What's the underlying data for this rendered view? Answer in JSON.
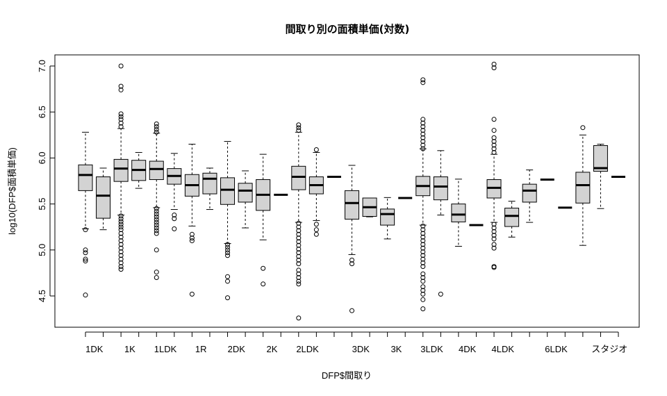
{
  "chart_data": {
    "type": "boxplot",
    "title": "間取り別の面積単価(対数)",
    "xlabel": "DFP$間取り",
    "ylabel": "log10(DFP$面積単価)",
    "ylim": [
      4.15,
      7.12
    ],
    "yticks": [
      4.5,
      5.0,
      5.5,
      6.0,
      6.5,
      7.0
    ],
    "xtick_labels": [
      "1DK",
      "1K",
      "1LDK",
      "1R",
      "2DK",
      "2K",
      "2LDK",
      "3DK",
      "3K",
      "3LDK",
      "4DK",
      "4LDK",
      "6LDK",
      "スタジオ"
    ],
    "xtick_label_groups": [
      1.5,
      3.5,
      5.5,
      7.5,
      9.5,
      11.5,
      13.5,
      16.5,
      18.5,
      20.5,
      22.5,
      24.5,
      27.5,
      30.5
    ],
    "n_groups": 31,
    "boxes": [
      {
        "pos": 1,
        "q1": 5.645,
        "med": 5.815,
        "q3": 5.925,
        "lo": 5.23,
        "hi": 6.28,
        "outliers": [
          5.22,
          5.0,
          4.97,
          4.9,
          4.88,
          4.51
        ]
      },
      {
        "pos": 2,
        "q1": 5.345,
        "med": 5.59,
        "q3": 5.795,
        "lo": 5.22,
        "hi": 5.89,
        "outliers": []
      },
      {
        "pos": 3,
        "q1": 5.745,
        "med": 5.885,
        "q3": 5.985,
        "lo": 5.38,
        "hi": 6.32,
        "outliers": [
          7.0,
          6.78,
          6.74,
          6.48,
          6.45,
          6.42,
          6.38,
          6.34,
          5.37,
          5.34,
          5.31,
          5.28,
          5.25,
          5.22,
          5.18,
          5.14,
          5.1,
          5.06,
          5.02,
          4.98,
          4.94,
          4.9,
          4.86,
          4.82,
          4.79
        ]
      },
      {
        "pos": 4,
        "q1": 5.755,
        "med": 5.87,
        "q3": 5.975,
        "lo": 5.67,
        "hi": 6.06,
        "outliers": []
      },
      {
        "pos": 5,
        "q1": 5.765,
        "med": 5.88,
        "q3": 5.965,
        "lo": 5.46,
        "hi": 6.27,
        "outliers": [
          6.37,
          6.34,
          6.31,
          6.28,
          5.45,
          5.42,
          5.39,
          5.36,
          5.33,
          5.3,
          5.27,
          5.24,
          5.21,
          5.18,
          5.0,
          4.76,
          4.7
        ]
      },
      {
        "pos": 6,
        "q1": 5.715,
        "med": 5.805,
        "q3": 5.885,
        "lo": 5.44,
        "hi": 6.05,
        "outliers": [
          5.38,
          5.34,
          5.23
        ]
      },
      {
        "pos": 7,
        "q1": 5.585,
        "med": 5.705,
        "q3": 5.82,
        "lo": 5.26,
        "hi": 6.15,
        "outliers": [
          5.17,
          5.13,
          5.1,
          4.52
        ]
      },
      {
        "pos": 8,
        "q1": 5.61,
        "med": 5.775,
        "q3": 5.835,
        "lo": 5.44,
        "hi": 5.89,
        "outliers": []
      },
      {
        "pos": 9,
        "q1": 5.495,
        "med": 5.655,
        "q3": 5.785,
        "lo": 5.07,
        "hi": 6.18,
        "outliers": [
          5.06,
          5.03,
          5.0,
          4.97,
          4.94,
          4.71,
          4.66,
          4.48
        ]
      },
      {
        "pos": 10,
        "q1": 5.52,
        "med": 5.645,
        "q3": 5.725,
        "lo": 5.24,
        "hi": 5.86,
        "outliers": []
      },
      {
        "pos": 11,
        "q1": 5.43,
        "med": 5.6,
        "q3": 5.765,
        "lo": 5.11,
        "hi": 6.04,
        "outliers": [
          4.8,
          4.63
        ]
      },
      {
        "pos": 12,
        "q1": 5.6,
        "med": 5.6,
        "q3": 5.6,
        "lo": 5.6,
        "hi": 5.6,
        "outliers": []
      },
      {
        "pos": 13,
        "q1": 5.655,
        "med": 5.795,
        "q3": 5.91,
        "lo": 5.3,
        "hi": 6.28,
        "outliers": [
          6.36,
          6.33,
          6.3,
          5.29,
          5.25,
          5.21,
          5.17,
          5.13,
          5.09,
          5.05,
          5.01,
          4.97,
          4.93,
          4.89,
          4.85,
          4.78,
          4.74,
          4.7,
          4.66,
          4.63,
          4.26
        ]
      },
      {
        "pos": 14,
        "q1": 5.61,
        "med": 5.705,
        "q3": 5.795,
        "lo": 5.32,
        "hi": 6.06,
        "outliers": [
          6.09,
          5.28,
          5.22,
          5.17
        ]
      },
      {
        "pos": 15,
        "q1": 5.795,
        "med": 5.795,
        "q3": 5.795,
        "lo": 5.795,
        "hi": 5.795,
        "outliers": []
      },
      {
        "pos": 16,
        "q1": 5.335,
        "med": 5.51,
        "q3": 5.645,
        "lo": 4.95,
        "hi": 5.92,
        "outliers": [
          4.89,
          4.85,
          4.34
        ]
      },
      {
        "pos": 17,
        "q1": 5.365,
        "med": 5.465,
        "q3": 5.565,
        "lo": 5.36,
        "hi": 5.565,
        "outliers": []
      },
      {
        "pos": 18,
        "q1": 5.27,
        "med": 5.39,
        "q3": 5.445,
        "lo": 5.12,
        "hi": 5.57,
        "outliers": []
      },
      {
        "pos": 19,
        "q1": 5.565,
        "med": 5.565,
        "q3": 5.565,
        "lo": 5.565,
        "hi": 5.565,
        "outliers": []
      },
      {
        "pos": 20,
        "q1": 5.59,
        "med": 5.695,
        "q3": 5.8,
        "lo": 5.27,
        "hi": 6.1,
        "outliers": [
          6.85,
          6.82,
          6.42,
          6.38,
          6.34,
          6.3,
          6.26,
          6.22,
          6.18,
          6.14,
          6.1,
          5.26,
          5.22,
          5.18,
          5.14,
          5.1,
          5.06,
          5.02,
          4.98,
          4.94,
          4.9,
          4.86,
          4.82,
          4.74,
          4.7,
          4.66,
          4.6,
          4.56,
          4.52,
          4.46,
          4.36
        ]
      },
      {
        "pos": 21,
        "q1": 5.545,
        "med": 5.69,
        "q3": 5.795,
        "lo": 5.38,
        "hi": 6.08,
        "outliers": [
          4.52
        ]
      },
      {
        "pos": 22,
        "q1": 5.305,
        "med": 5.385,
        "q3": 5.5,
        "lo": 5.04,
        "hi": 5.77,
        "outliers": []
      },
      {
        "pos": 23,
        "q1": 5.27,
        "med": 5.27,
        "q3": 5.27,
        "lo": 5.27,
        "hi": 5.27,
        "outliers": []
      },
      {
        "pos": 24,
        "q1": 5.565,
        "med": 5.675,
        "q3": 5.765,
        "lo": 5.3,
        "hi": 6.04,
        "outliers": [
          7.02,
          6.98,
          6.42,
          6.3,
          6.22,
          6.18,
          6.14,
          6.1,
          6.06,
          5.28,
          5.24,
          5.2,
          5.16,
          5.12,
          5.06,
          5.02,
          4.82,
          4.81
        ]
      },
      {
        "pos": 25,
        "q1": 5.255,
        "med": 5.37,
        "q3": 5.455,
        "lo": 5.14,
        "hi": 5.53,
        "outliers": []
      },
      {
        "pos": 26,
        "q1": 5.52,
        "med": 5.645,
        "q3": 5.715,
        "lo": 5.3,
        "hi": 5.87,
        "outliers": []
      },
      {
        "pos": 27,
        "q1": 5.765,
        "med": 5.765,
        "q3": 5.765,
        "lo": 5.765,
        "hi": 5.765,
        "outliers": []
      },
      {
        "pos": 28,
        "q1": 5.46,
        "med": 5.46,
        "q3": 5.46,
        "lo": 5.46,
        "hi": 5.46,
        "outliers": []
      },
      {
        "pos": 29,
        "q1": 5.51,
        "med": 5.705,
        "q3": 5.845,
        "lo": 5.05,
        "hi": 6.25,
        "outliers": [
          6.33
        ]
      },
      {
        "pos": 30,
        "q1": 5.855,
        "med": 5.89,
        "q3": 6.135,
        "lo": 5.45,
        "hi": 6.15,
        "outliers": []
      },
      {
        "pos": 31,
        "q1": 5.795,
        "med": 5.795,
        "q3": 5.795,
        "lo": 5.795,
        "hi": 5.795,
        "outliers": []
      }
    ]
  }
}
